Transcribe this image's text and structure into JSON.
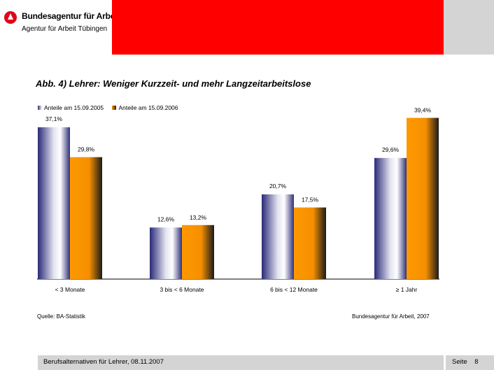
{
  "header": {
    "org_name": "Bundesagentur für Arbeit",
    "org_sub": "Agentur für Arbeit Tübingen",
    "colors": {
      "red": "#ff0000",
      "gray": "#d4d4d4"
    }
  },
  "chart_data": {
    "type": "bar",
    "title": "Abb. 4) Lehrer: Weniger Kurzzeit- und mehr Langzeitarbeitslose",
    "categories": [
      "< 3 Monate",
      "3 bis < 6 Monate",
      "6 bis < 12 Monate",
      "≥ 1 Jahr"
    ],
    "series": [
      {
        "name": "Anteile am 15.09.2005",
        "values": [
          37.1,
          12.6,
          20.7,
          29.6
        ],
        "labels": [
          "37,1%",
          "12,6%",
          "20,7%",
          "29,6%"
        ],
        "color": "#2e2e7a"
      },
      {
        "name": "Anteile am 15.09.2006",
        "values": [
          29.8,
          13.2,
          17.5,
          39.4
        ],
        "labels": [
          "29,8%",
          "13,2%",
          "17,5%",
          "39,4%"
        ],
        "color": "#ff9900"
      }
    ],
    "xlabel": "",
    "ylabel": "",
    "ylim": [
      0,
      40
    ],
    "grid": false,
    "legend": "top-left"
  },
  "source": {
    "left": "Quelle: BA-Statistik",
    "right": "Bundesagentur für Arbeit, 2007"
  },
  "footer": {
    "text": "Berufsalternativen für Lehrer, 08.11.2007",
    "page_label": "Seite",
    "page_number": "8"
  }
}
